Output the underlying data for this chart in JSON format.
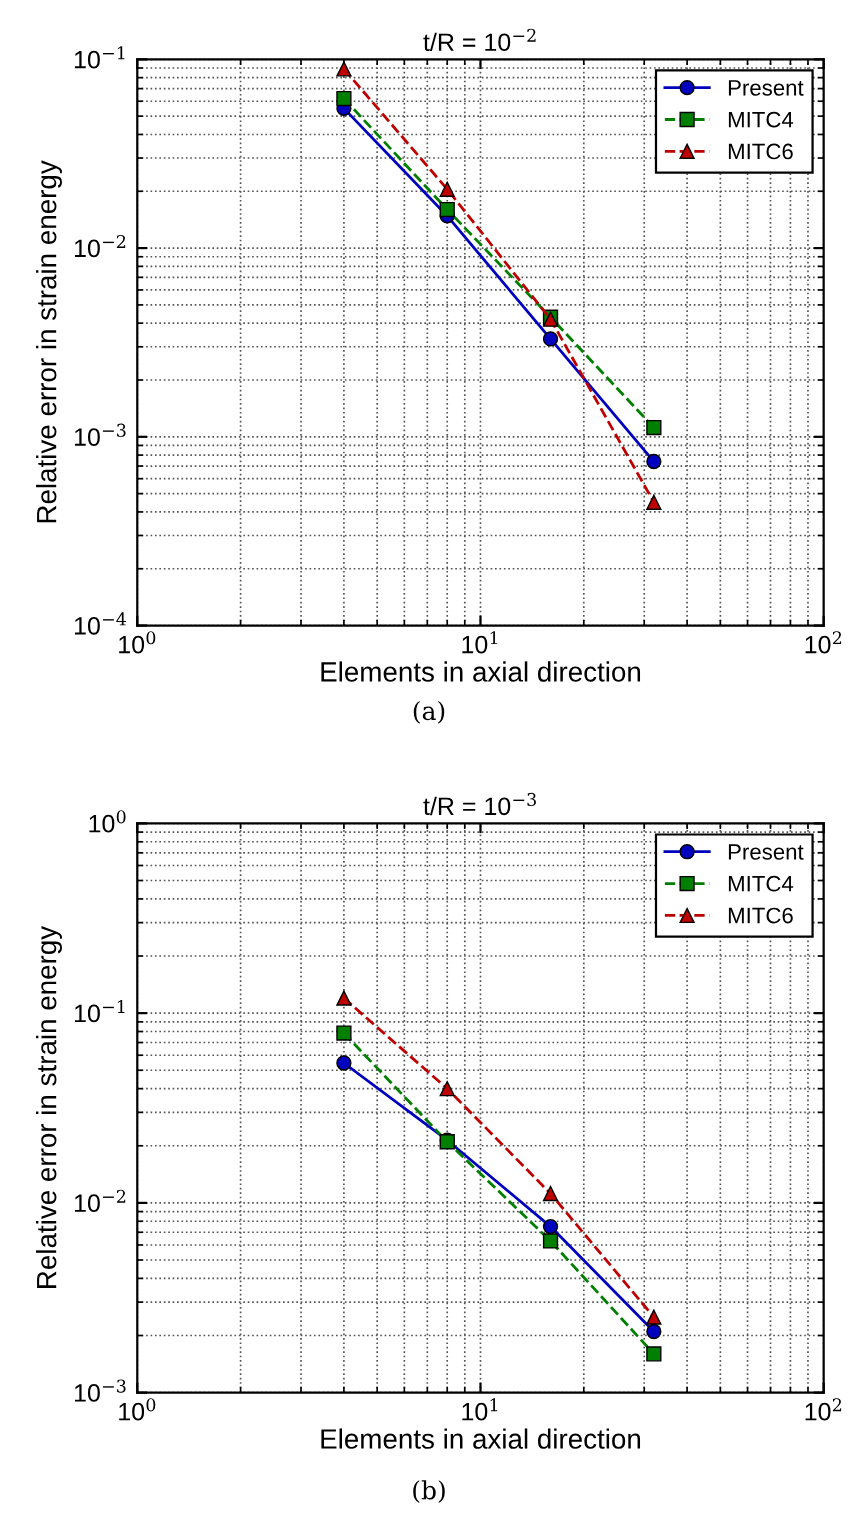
{
  "chart_data": [
    {
      "type": "line",
      "title": "t/R = 10$^{−2}$",
      "xlabel": "Elements in axial direction",
      "ylabel": "Relative error in strain energy",
      "annotations": [
        "(a)"
      ],
      "log": "xy",
      "grid": true,
      "legend": "top right",
      "x": [
        4,
        8,
        16,
        32
      ],
      "series": [
        {
          "name": "Present",
          "color": "#0000bf",
          "marker": "circle",
          "line_style": "solid",
          "values": [
            0.055,
            0.0148,
            0.0033,
            0.00074
          ]
        },
        {
          "name": "MITC4",
          "color": "#007f00",
          "marker": "square",
          "line_style": "dashed",
          "values": [
            0.062,
            0.016,
            0.0043,
            0.00112
          ]
        },
        {
          "name": "MITC6",
          "color": "#bf0000",
          "marker": "triangle",
          "line_style": "dashed",
          "values": [
            0.089,
            0.0205,
            0.0042,
            0.00045
          ]
        }
      ],
      "xlim": [
        1,
        100
      ],
      "xticks": [
        {
          "value": 1,
          "label": "10$^{0}$"
        },
        {
          "value": 10,
          "label": "10$^{1}$"
        },
        {
          "value": 100,
          "label": "10$^{2}$"
        }
      ],
      "ylim": [
        0.0001,
        0.1
      ],
      "yticks": [
        {
          "value": 0.0001,
          "label": "10$^{−4}$"
        },
        {
          "value": 0.001,
          "label": "10$^{−3}$"
        },
        {
          "value": 0.01,
          "label": "10$^{−2}$"
        },
        {
          "value": 0.1,
          "label": "10$^{−1}$"
        }
      ]
    },
    {
      "type": "line",
      "title": "t/R = 10$^{−3}$",
      "xlabel": "Elements in axial direction",
      "ylabel": "Relative error in strain energy",
      "annotations": [
        "(b)"
      ],
      "log": "xy",
      "grid": true,
      "legend": "top right",
      "x": [
        4,
        8,
        16,
        32
      ],
      "series": [
        {
          "name": "Present",
          "color": "#0000bf",
          "marker": "circle",
          "line_style": "solid",
          "values": [
            0.0546,
            0.0214,
            0.0075,
            0.0021
          ]
        },
        {
          "name": "MITC4",
          "color": "#007f00",
          "marker": "square",
          "line_style": "dashed",
          "values": [
            0.0785,
            0.021,
            0.0063,
            0.0016
          ]
        },
        {
          "name": "MITC6",
          "color": "#bf0000",
          "marker": "triangle",
          "line_style": "dashed",
          "values": [
            0.12,
            0.04,
            0.0112,
            0.0025
          ]
        }
      ],
      "xlim": [
        1,
        100
      ],
      "xticks": [
        {
          "value": 1,
          "label": "10$^{0}$"
        },
        {
          "value": 10,
          "label": "10$^{1}$"
        },
        {
          "value": 100,
          "label": "10$^{2}$"
        }
      ],
      "ylim": [
        0.001,
        1
      ],
      "yticks": [
        {
          "value": 0.001,
          "label": "10$^{−3}$"
        },
        {
          "value": 0.01,
          "label": "10$^{−2}$"
        },
        {
          "value": 0.1,
          "label": "10$^{−1}$"
        },
        {
          "value": 1,
          "label": "10$^{0}$"
        }
      ]
    }
  ]
}
